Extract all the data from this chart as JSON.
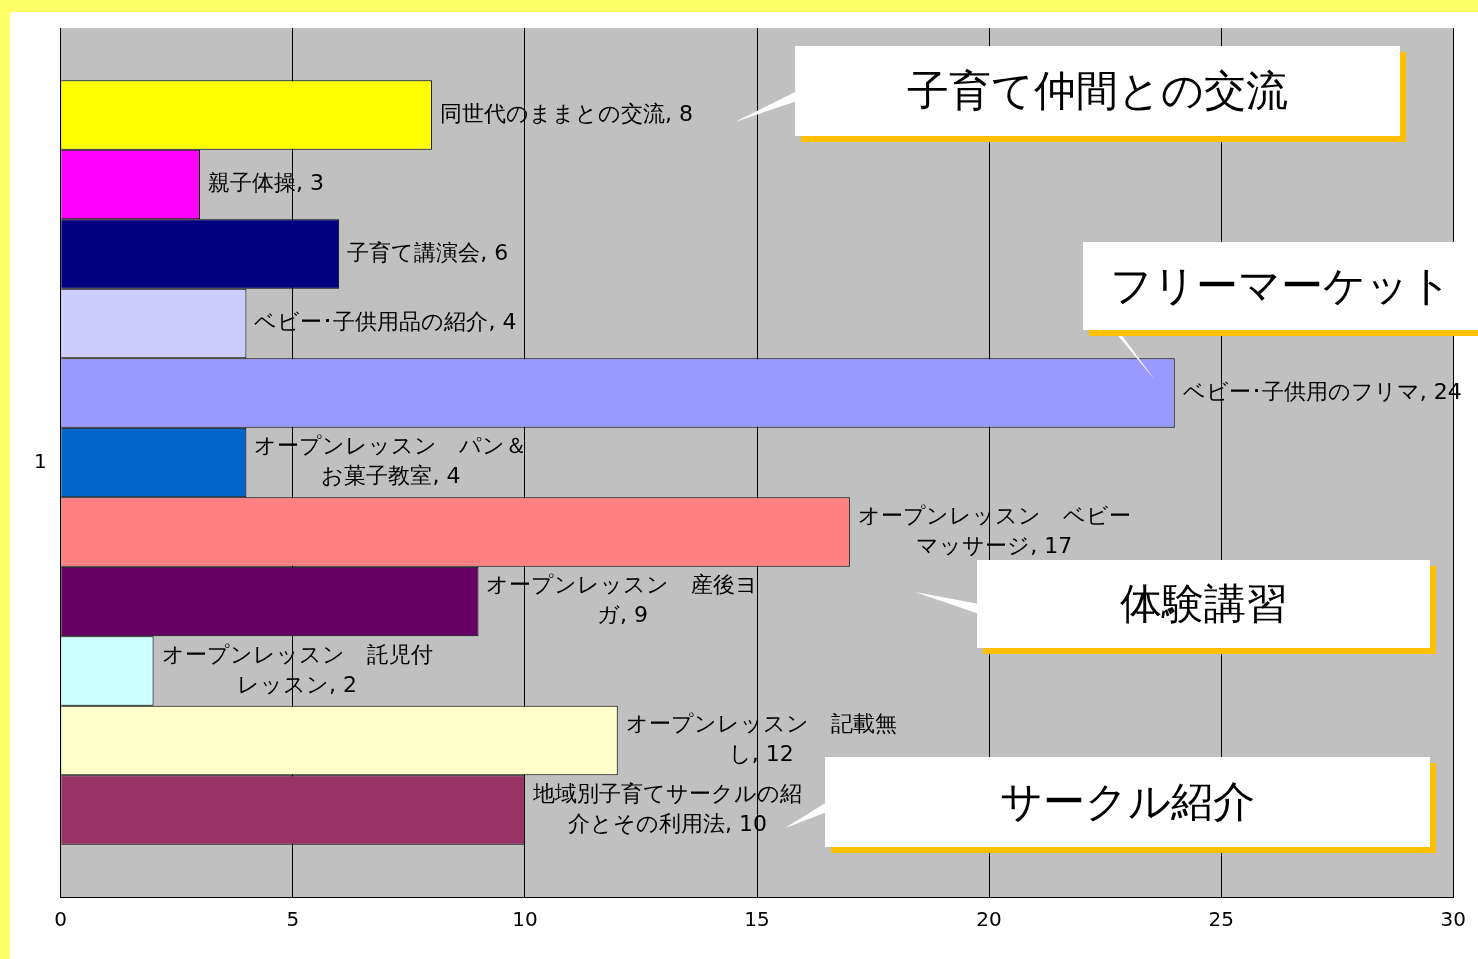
{
  "chart_data": {
    "type": "bar",
    "orientation": "horizontal",
    "categories": [
      "1"
    ],
    "series": [
      {
        "name": "同世代のままとの交流",
        "color": "#ffff00",
        "values": [
          8
        ],
        "value_labels": [
          ", 8"
        ]
      },
      {
        "name": "親子体操",
        "color": "#ff00ff",
        "values": [
          3
        ],
        "value_labels": [
          ", 3"
        ]
      },
      {
        "name": "子育て講演会",
        "color": "#000080",
        "values": [
          6
        ],
        "value_labels": [
          ", 6"
        ]
      },
      {
        "name": "ベビー･子供用品の紹介",
        "color": "#ccccff",
        "values": [
          4
        ],
        "value_labels": [
          ", 4"
        ]
      },
      {
        "name": "ベビー･子供用のフリマ",
        "color": "#9999ff",
        "values": [
          24
        ],
        "value_labels": [
          ", 24"
        ]
      },
      {
        "name": "オープンレッスン　パン＆お菓子教室",
        "color": "#0066cc",
        "values": [
          4
        ],
        "value_labels": [
          ", 4"
        ]
      },
      {
        "name": "オープンレッスン　ベビーマッサージ",
        "color": "#ff8080",
        "values": [
          17
        ],
        "value_labels": [
          ", 17"
        ]
      },
      {
        "name": "オープンレッスン　産後ヨガ",
        "color": "#660066",
        "values": [
          9
        ],
        "value_labels": [
          ", 9"
        ]
      },
      {
        "name": "オープンレッスン　託児付レッスン",
        "color": "#ccffff",
        "values": [
          2
        ],
        "value_labels": [
          ", 2"
        ]
      },
      {
        "name": "オープンレッスン　記載無し",
        "color": "#ffffcc",
        "values": [
          12
        ],
        "value_labels": [
          ", 12"
        ]
      },
      {
        "name": "地域別子育てサークルの紹介とその利用法",
        "color": "#993366",
        "values": [
          10
        ],
        "value_labels": [
          ", 10"
        ]
      }
    ],
    "xlim": [
      0,
      30
    ],
    "xticks": [
      0,
      5,
      10,
      15,
      20,
      25,
      30
    ],
    "grid": "x",
    "legend": false,
    "annotations": [
      "子育て仲間との交流",
      "フリーマーケット",
      "体験講習",
      "サークル紹介"
    ]
  }
}
